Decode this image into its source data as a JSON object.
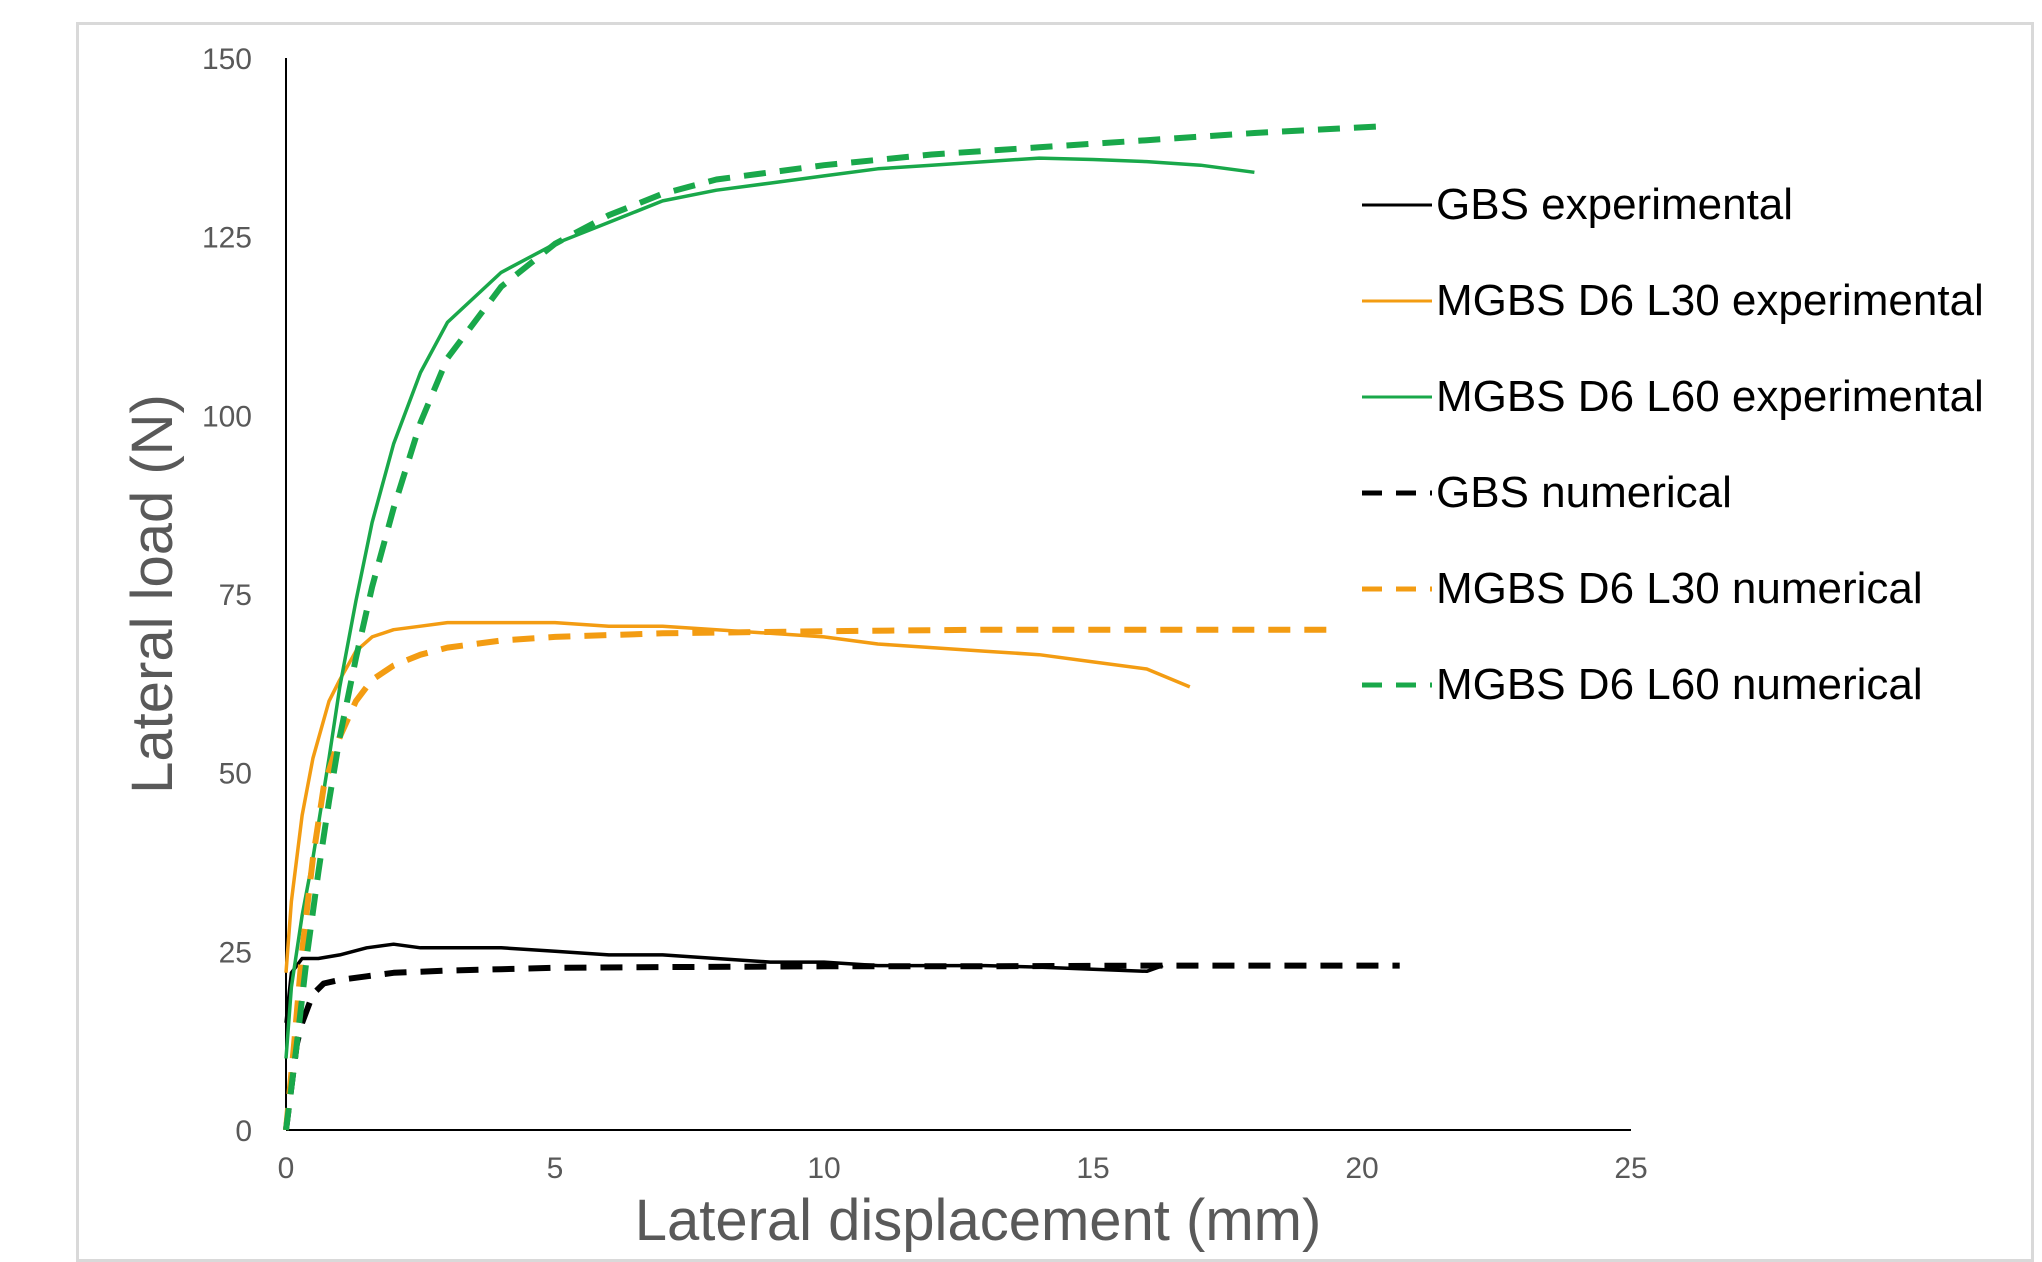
{
  "chart_data": {
    "type": "line",
    "xlabel": "Lateral displacement (mm)",
    "ylabel": "Lateral load (N)",
    "xlim": [
      0,
      25
    ],
    "ylim": [
      0,
      150
    ],
    "xticks": [
      0,
      5,
      10,
      15,
      20,
      25
    ],
    "yticks": [
      0,
      25,
      50,
      75,
      100,
      125,
      150
    ],
    "grid": false,
    "legend_position": "right",
    "series": [
      {
        "name": "GBS experimental",
        "color": "#000000",
        "style": "solid",
        "x": [
          0,
          0.1,
          0.3,
          0.6,
          1.0,
          1.5,
          2.0,
          2.5,
          3.0,
          4.0,
          5.0,
          6.0,
          7.0,
          8.0,
          9.0,
          10.0,
          11.0,
          12.0,
          13.0,
          14.0,
          15.0,
          16.0,
          16.3
        ],
        "y": [
          15,
          22,
          24,
          24,
          24.5,
          25.5,
          26,
          25.5,
          25.5,
          25.5,
          25,
          24.5,
          24.5,
          24,
          23.5,
          23.5,
          23,
          23,
          23,
          22.8,
          22.5,
          22.2,
          23
        ]
      },
      {
        "name": "MGBS D6 L30 experimental",
        "color": "#f39c12",
        "style": "solid",
        "x": [
          0,
          0.1,
          0.3,
          0.5,
          0.8,
          1.0,
          1.3,
          1.6,
          2.0,
          2.5,
          3.0,
          4.0,
          5.0,
          6.0,
          7.0,
          8.0,
          9.0,
          10.0,
          11.0,
          12.0,
          13.0,
          14.0,
          15.0,
          16.0,
          16.8
        ],
        "y": [
          22,
          32,
          44,
          52,
          60,
          63,
          67,
          69,
          70,
          70.5,
          71,
          71,
          71,
          70.5,
          70.5,
          70,
          69.5,
          69,
          68,
          67.5,
          67,
          66.5,
          65.5,
          64.5,
          62
        ]
      },
      {
        "name": "MGBS D6 L60 experimental",
        "color": "#19a84a",
        "style": "solid",
        "x": [
          0,
          0.1,
          0.3,
          0.5,
          0.8,
          1.0,
          1.3,
          1.6,
          2.0,
          2.5,
          3.0,
          4.0,
          5.0,
          6.0,
          7.0,
          8.0,
          9.0,
          10.0,
          11.0,
          12.0,
          13.0,
          14.0,
          15.0,
          16.0,
          17.0,
          18.0
        ],
        "y": [
          10,
          20,
          30,
          38,
          52,
          62,
          74,
          85,
          96,
          106,
          113,
          120,
          124,
          127,
          130,
          131.5,
          132.5,
          133.5,
          134.5,
          135,
          135.5,
          136,
          135.8,
          135.5,
          135,
          134
        ]
      },
      {
        "name": "GBS numerical",
        "color": "#000000",
        "style": "dashed",
        "x": [
          0,
          0.1,
          0.2,
          0.3,
          0.4,
          0.5,
          0.7,
          1.0,
          1.5,
          2.0,
          3.0,
          4.0,
          5.0,
          7.0,
          10.0,
          13.0,
          16.0,
          18.0,
          20.7
        ],
        "y": [
          0,
          6,
          12,
          15,
          17,
          19,
          20.5,
          21,
          21.5,
          22,
          22.3,
          22.5,
          22.7,
          22.8,
          22.9,
          22.9,
          23,
          23,
          23
        ]
      },
      {
        "name": "MGBS D6 L30 numerical",
        "color": "#f39c12",
        "style": "dashed",
        "x": [
          0,
          0.15,
          0.3,
          0.5,
          0.7,
          1.0,
          1.3,
          1.6,
          2.0,
          2.5,
          3.0,
          4.0,
          5.0,
          7.0,
          10.0,
          13.0,
          16.0,
          19.5
        ],
        "y": [
          0,
          12,
          25,
          38,
          48,
          55,
          60,
          63,
          65,
          66.5,
          67.5,
          68.5,
          69,
          69.5,
          69.8,
          70,
          70,
          70
        ]
      },
      {
        "name": "MGBS D6 L60 numerical",
        "color": "#19a84a",
        "style": "dashed",
        "x": [
          0,
          0.2,
          0.4,
          0.6,
          0.8,
          1.0,
          1.3,
          1.6,
          2.0,
          2.5,
          3.0,
          4.0,
          5.0,
          6.0,
          7.0,
          8.0,
          10.0,
          12.0,
          14.0,
          16.0,
          18.0,
          20.5
        ],
        "y": [
          0,
          12,
          25,
          36,
          46,
          55,
          66,
          76,
          87,
          99,
          108,
          118,
          124,
          128,
          131,
          133,
          135,
          136.5,
          137.5,
          138.5,
          139.5,
          140.5
        ]
      }
    ]
  }
}
